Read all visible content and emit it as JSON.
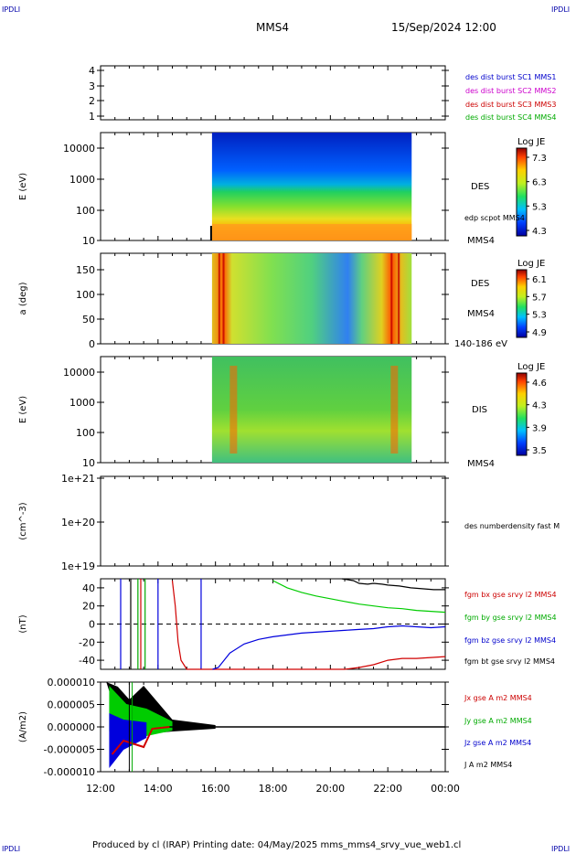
{
  "corner_label": "IPDLI",
  "header": {
    "spacecraft": "MMS4",
    "datetime": "15/Sep/2024 12:00"
  },
  "footer": "Produced by cl (IRAP)   Printing date: 04/May/2025   mms_mms4_srvy_vue_web1.cl",
  "chart_data": [
    {
      "type": "scatter",
      "name_panel": "sc-position",
      "yticks": [
        "1",
        "2",
        "3",
        "4"
      ],
      "ylim": [
        0.6,
        4.4
      ],
      "legend": [
        {
          "text": "des dist burst SC1 MMS1",
          "color": "#0000cc"
        },
        {
          "text": "des dist burst SC2 MMS2",
          "color": "#cc00cc"
        },
        {
          "text": "des dist burst SC3 MMS3",
          "color": "#cc0000"
        },
        {
          "text": "des dist burst SC4 MMS4",
          "color": "#00aa00"
        }
      ]
    },
    {
      "type": "heatmap",
      "ylabel": "E (eV)",
      "yticks": [
        "10",
        "100",
        "1000",
        "10000"
      ],
      "side_label": "DES",
      "sub_label": "edp scpot MMS4",
      "bottom_label": "MMS4",
      "colorbar": {
        "title": "Log JE",
        "ticks": [
          "7.3",
          "6.3",
          "5.3",
          "4.3"
        ]
      }
    },
    {
      "type": "heatmap",
      "ylabel": "a (deg)",
      "yticks": [
        "0",
        "50",
        "100",
        "150"
      ],
      "side_label": "DES",
      "sub_label": "MMS4",
      "bottom_label": "140-186 eV",
      "colorbar": {
        "title": "Log JE",
        "ticks": [
          "6.1",
          "5.7",
          "5.3",
          "4.9"
        ]
      }
    },
    {
      "type": "heatmap",
      "ylabel": "E (eV)",
      "yticks": [
        "10",
        "100",
        "1000",
        "10000"
      ],
      "side_label": "DIS",
      "bottom_label": "MMS4",
      "colorbar": {
        "title": "Log JE",
        "ticks": [
          "4.6",
          "4.3",
          "3.9",
          "3.5"
        ]
      }
    },
    {
      "type": "line",
      "ylabel": "(cm^-3)",
      "yticks": [
        "1e+19",
        "1e+20",
        "1e+21"
      ],
      "legend": [
        {
          "text": "des numberdensity fast M",
          "color": "#000000"
        }
      ]
    },
    {
      "type": "line",
      "ylabel": "(nT)",
      "yticks": [
        "-40",
        "-20",
        "0",
        "20",
        "40"
      ],
      "ylim": [
        -50,
        50
      ],
      "legend": [
        {
          "text": "fgm bx gse srvy l2 MMS4",
          "color": "#cc0000"
        },
        {
          "text": "fgm by gse srvy l2 MMS4",
          "color": "#00aa00"
        },
        {
          "text": "fgm bz gse srvy l2 MMS4",
          "color": "#0000cc"
        },
        {
          "text": "fgm bt gse srvy l2 MMS4",
          "color": "#000000"
        }
      ],
      "series": [
        {
          "name": "fgm bx gse srvy l2 MMS4",
          "color": "#d00000",
          "x": [
            14.5,
            14.6,
            14.7,
            14.8,
            15.0,
            15.5,
            16,
            17,
            18,
            19,
            20,
            20.5,
            21,
            21.5,
            22,
            22.5,
            23,
            23.5,
            24
          ],
          "y": [
            48,
            20,
            -20,
            -40,
            -50,
            -52,
            -53,
            -52,
            -51,
            -51,
            -51,
            -50,
            -48,
            -45,
            -40,
            -38,
            -38,
            -37,
            -36
          ]
        },
        {
          "name": "fgm by gse srvy l2 MMS4",
          "color": "#00cc00",
          "x": [
            18,
            18.5,
            19,
            19.5,
            20,
            20.5,
            21,
            21.5,
            22,
            22.5,
            23,
            23.5,
            24
          ],
          "y": [
            48,
            40,
            35,
            31,
            28,
            25,
            22,
            20,
            18,
            17,
            15,
            14,
            13
          ]
        },
        {
          "name": "fgm bz gse srvy l2 MMS4",
          "color": "#0000dd",
          "x": [
            15.9,
            16.1,
            16.3,
            16.5,
            17,
            17.5,
            18,
            18.5,
            19,
            19.5,
            20,
            20.5,
            21,
            21.5,
            22,
            22.5,
            23,
            23.5,
            24
          ],
          "y": [
            -52,
            -48,
            -40,
            -32,
            -22,
            -17,
            -14,
            -12,
            -10,
            -9,
            -8,
            -7,
            -6,
            -5,
            -3,
            -2,
            -3,
            -4,
            -3
          ]
        },
        {
          "name": "fgm bt gse srvy l2 MMS4",
          "color": "#000000",
          "x": [
            20.4,
            20.8,
            21,
            21.3,
            21.5,
            21.8,
            22,
            22.4,
            22.8,
            23.2,
            23.6,
            24
          ],
          "y": [
            52,
            48,
            45,
            44,
            45,
            44,
            43,
            42,
            40,
            39,
            38,
            38
          ]
        }
      ]
    },
    {
      "type": "line",
      "ylabel": "(A/m2)",
      "yticks": [
        "-0.000010",
        "-0.000005",
        "0.000000",
        "0.000005",
        "0.000010"
      ],
      "ylim": [
        -1e-05,
        1e-05
      ],
      "legend": [
        {
          "text": "Jx gse A m2 MMS4",
          "color": "#cc0000"
        },
        {
          "text": "Jy gse A m2 MMS4",
          "color": "#00aa00"
        },
        {
          "text": "Jz gse A m2 MMS4",
          "color": "#0000cc"
        },
        {
          "text": "J A m2 MMS4",
          "color": "#000000"
        }
      ],
      "xticks": [
        "12:00",
        "14:00",
        "16:00",
        "18:00",
        "20:00",
        "22:00",
        "00:00"
      ]
    }
  ]
}
